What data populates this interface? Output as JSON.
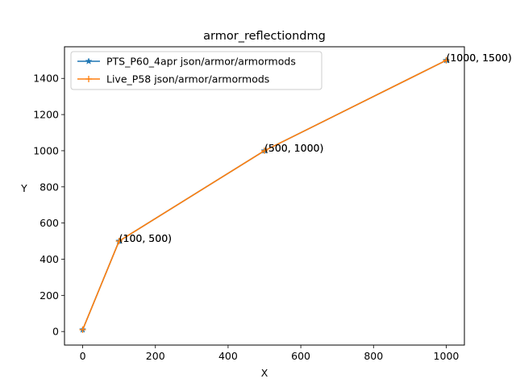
{
  "chart_data": {
    "type": "line",
    "title": "armor_reflectiondmg",
    "xlabel": "X",
    "ylabel": "Y",
    "xlim": [
      -50,
      1050
    ],
    "ylim": [
      -75,
      1575
    ],
    "xticks": [
      0,
      200,
      400,
      600,
      800,
      1000
    ],
    "yticks": [
      0,
      200,
      400,
      600,
      800,
      1000,
      1200,
      1400
    ],
    "legend_position": "upper left",
    "series": [
      {
        "name": "PTS_P60_4apr json/armor/armormods",
        "color": "#1f77b4",
        "marker": "star",
        "x": [
          0,
          100,
          500,
          1000
        ],
        "y": [
          10,
          500,
          1000,
          1500
        ]
      },
      {
        "name": "Live_P58 json/armor/armormods",
        "color": "#ff7f0e",
        "marker": "plus",
        "x": [
          0,
          100,
          500,
          1000
        ],
        "y": [
          10,
          500,
          1000,
          1500
        ]
      }
    ],
    "annotations": [
      {
        "text": "(100, 500)",
        "x": 100,
        "y": 500
      },
      {
        "text": "(500, 1000)",
        "x": 500,
        "y": 1000
      },
      {
        "text": "(1000, 1500)",
        "x": 1000,
        "y": 1500
      }
    ]
  }
}
